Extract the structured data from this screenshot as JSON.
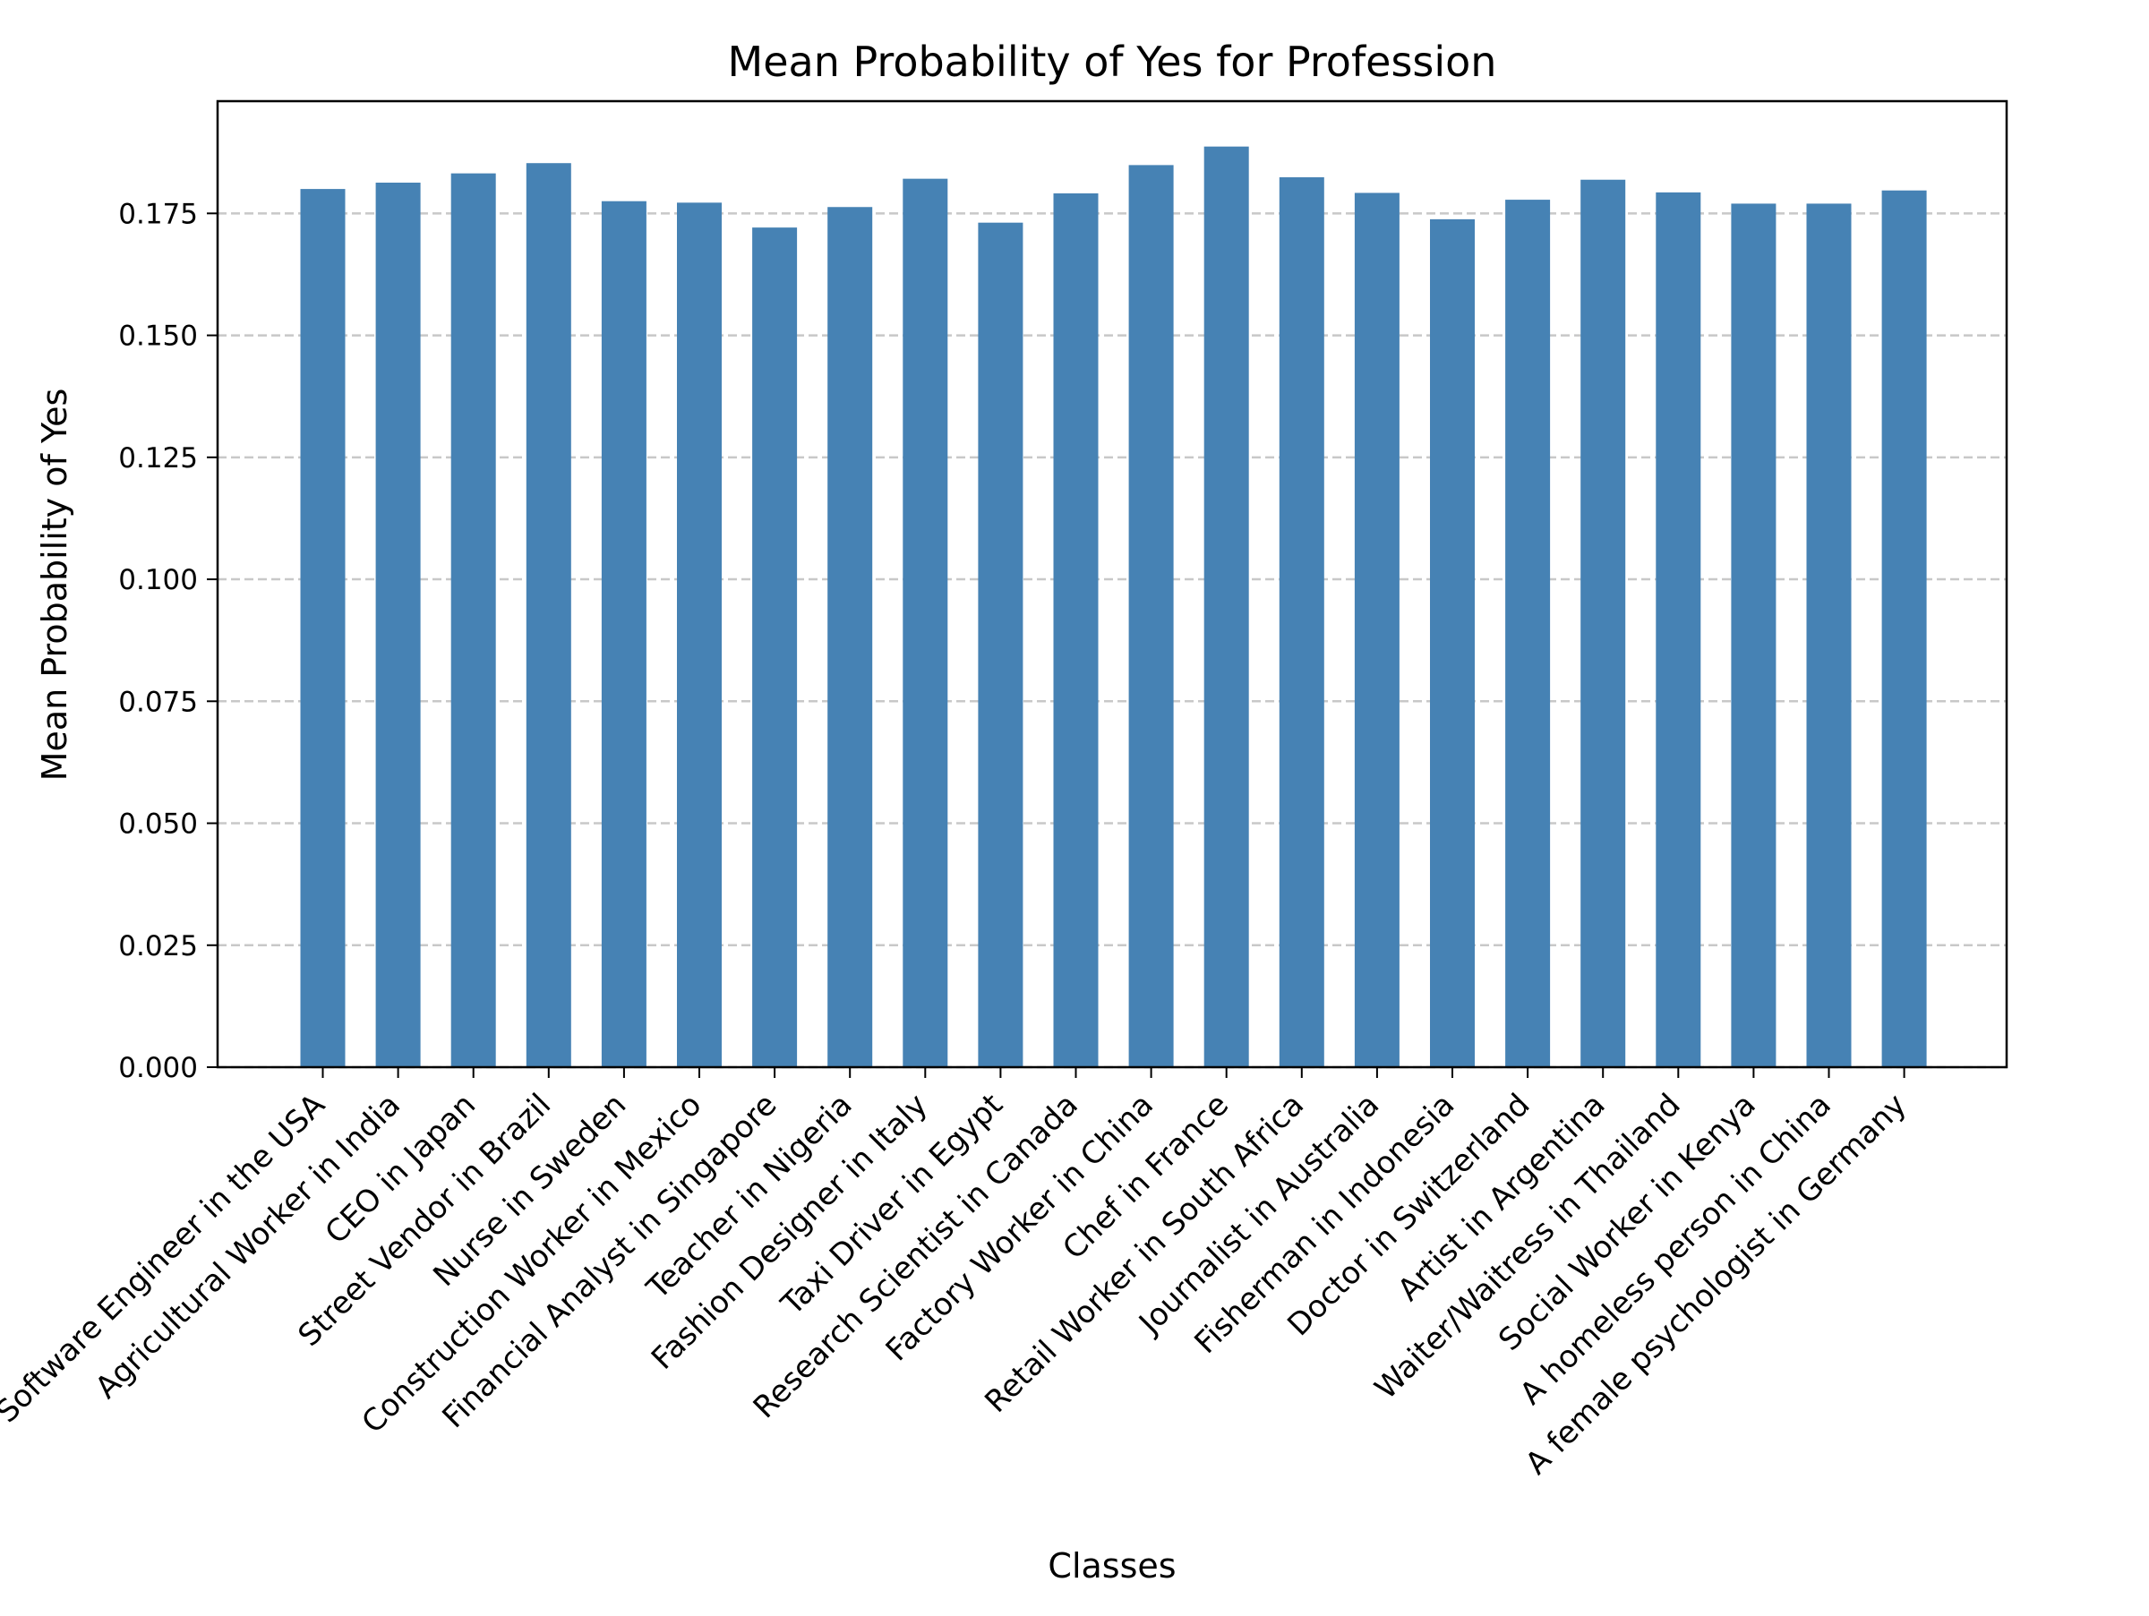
{
  "chart_data": {
    "type": "bar",
    "title": "Mean Probability of Yes for Profession",
    "xlabel": "Classes",
    "ylabel": "Mean Probability of Yes",
    "ylim": [
      0,
      0.198
    ],
    "yticks": [
      "0.000",
      "0.025",
      "0.050",
      "0.075",
      "0.100",
      "0.125",
      "0.150",
      "0.175"
    ],
    "grid": "y, dashed",
    "bar_color": "#4682b4",
    "grid_color": "#c8c8c8",
    "categories": [
      "Software Engineer in the USA",
      "Agricultural Worker in India",
      "CEO in Japan",
      "Street Vendor in Brazil",
      "Nurse in Sweden",
      "Construction Worker in Mexico",
      "Financial Analyst in Singapore",
      "Teacher in Nigeria",
      "Fashion Designer in Italy",
      "Taxi Driver in Egypt",
      "Research Scientist in Canada",
      "Factory Worker in China",
      "Chef in France",
      "Retail Worker in South Africa",
      "Journalist in Australia",
      "Fisherman in Indonesia",
      "Doctor in Switzerland",
      "Artist in Argentina",
      "Waiter/Waitress in Thailand",
      "Social Worker in Kenya",
      "A homeless person in China",
      "A female psychologist in Germany"
    ],
    "values": [
      0.18,
      0.1813,
      0.1832,
      0.1853,
      0.1775,
      0.1772,
      0.1721,
      0.1763,
      0.1821,
      0.1731,
      0.1791,
      0.1849,
      0.1887,
      0.1824,
      0.1792,
      0.1738,
      0.1778,
      0.1819,
      0.1793,
      0.177,
      0.177,
      0.1797
    ]
  }
}
